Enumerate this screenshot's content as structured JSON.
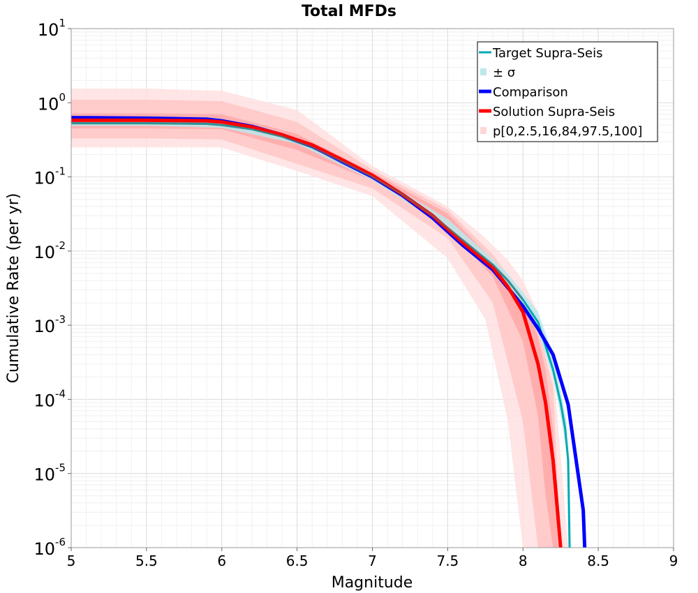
{
  "chart_data": {
    "type": "line",
    "title": "Total MFDs",
    "xlabel": "Magnitude",
    "ylabel": "Cumulative Rate (per yr)",
    "xlim": [
      5,
      9
    ],
    "ylim_log10": [
      -6,
      1
    ],
    "yscale": "log",
    "grid": true,
    "legend_position": "top-right",
    "x_ticks": [
      "5",
      "5.5",
      "6",
      "6.5",
      "7",
      "7.5",
      "8",
      "8.5",
      "9"
    ],
    "y_ticks": [
      {
        "base": "10",
        "exp": "1"
      },
      {
        "base": "10",
        "exp": "0"
      },
      {
        "base": "10",
        "exp": "-1"
      },
      {
        "base": "10",
        "exp": "-2"
      },
      {
        "base": "10",
        "exp": "-3"
      },
      {
        "base": "10",
        "exp": "-4"
      },
      {
        "base": "10",
        "exp": "-5"
      },
      {
        "base": "10",
        "exp": "-6"
      }
    ],
    "legend": [
      {
        "label": "Target Supra-Seis",
        "kind": "line",
        "color": "#00a9b0"
      },
      {
        "label": "± σ",
        "kind": "band",
        "color": "#bce8ec"
      },
      {
        "label": "Comparison",
        "kind": "line",
        "color": "#0000ff"
      },
      {
        "label": "Solution Supra-Seis",
        "kind": "line",
        "color": "#ff0000"
      },
      {
        "label": "p[0,2.5,16,84,97.5,100]",
        "kind": "band",
        "color": "#ffd6d6"
      }
    ],
    "series": [
      {
        "name": "Target Supra-Seis",
        "color": "#00a9b0",
        "x": [
          5.0,
          5.5,
          5.9,
          6.0,
          6.2,
          6.4,
          6.6,
          6.8,
          7.0,
          7.2,
          7.4,
          7.6,
          7.8,
          7.9,
          8.0,
          8.1,
          8.2,
          8.25,
          8.28,
          8.3,
          8.31
        ],
        "y": [
          0.53,
          0.53,
          0.52,
          0.5,
          0.44,
          0.35,
          0.25,
          0.16,
          0.1,
          0.058,
          0.03,
          0.014,
          0.0065,
          0.004,
          0.0022,
          0.0011,
          0.00025,
          9e-05,
          4e-05,
          1.5e-05,
          1e-06
        ]
      },
      {
        "name": "Comparison",
        "color": "#0000ff",
        "x": [
          5.0,
          5.5,
          5.9,
          6.0,
          6.2,
          6.4,
          6.6,
          6.8,
          7.0,
          7.2,
          7.4,
          7.6,
          7.8,
          7.9,
          8.0,
          8.1,
          8.2,
          8.3,
          8.4,
          8.41
        ],
        "y": [
          0.63,
          0.62,
          0.6,
          0.57,
          0.48,
          0.37,
          0.26,
          0.16,
          0.1,
          0.056,
          0.028,
          0.012,
          0.0056,
          0.0032,
          0.0018,
          0.0009,
          0.0004,
          8.5e-05,
          3.2e-06,
          1e-06
        ]
      },
      {
        "name": "Solution Supra-Seis",
        "color": "#ff0000",
        "x": [
          5.0,
          5.5,
          5.9,
          6.0,
          6.2,
          6.4,
          6.6,
          6.8,
          7.0,
          7.2,
          7.4,
          7.6,
          7.8,
          7.9,
          8.0,
          8.1,
          8.15,
          8.2,
          8.23,
          8.25
        ],
        "y": [
          0.58,
          0.58,
          0.57,
          0.55,
          0.47,
          0.37,
          0.27,
          0.17,
          0.105,
          0.058,
          0.03,
          0.013,
          0.006,
          0.0033,
          0.0015,
          0.0003,
          9e-05,
          1.5e-05,
          3e-06,
          1e-06
        ]
      }
    ],
    "sigma_band": {
      "color": "#bce8ec",
      "x": [
        5.0,
        5.5,
        6.0,
        6.5,
        7.0,
        7.5,
        7.8,
        7.9,
        8.0,
        8.1,
        8.2,
        8.25,
        8.29,
        8.31
      ],
      "lower": [
        0.49,
        0.49,
        0.46,
        0.28,
        0.09,
        0.02,
        0.0055,
        0.0034,
        0.0018,
        0.0008,
        0.0002,
        6e-05,
        2e-05,
        1e-06
      ],
      "upper": [
        0.58,
        0.58,
        0.55,
        0.33,
        0.11,
        0.027,
        0.0078,
        0.0049,
        0.0028,
        0.0015,
        0.0004,
        0.00013,
        5e-05,
        2e-06
      ]
    },
    "percentile_bands": [
      {
        "color": "#ffdede",
        "x": [
          5.0,
          5.5,
          6.0,
          6.5,
          7.0,
          7.5,
          7.75,
          7.9,
          8.0,
          8.1,
          8.2,
          8.3
        ],
        "lower": [
          0.25,
          0.25,
          0.25,
          0.12,
          0.055,
          0.008,
          0.0012,
          5e-05,
          1e-06,
          1e-06,
          1e-06,
          1e-06
        ],
        "upper": [
          1.55,
          1.55,
          1.45,
          0.8,
          0.14,
          0.04,
          0.015,
          0.0075,
          0.004,
          0.0015,
          0.0003,
          1e-06
        ]
      },
      {
        "color": "#ffc4c4",
        "x": [
          5.0,
          5.5,
          6.0,
          6.5,
          7.0,
          7.5,
          7.8,
          8.0,
          8.1,
          8.2,
          8.25
        ],
        "lower": [
          0.33,
          0.33,
          0.32,
          0.15,
          0.07,
          0.015,
          0.002,
          5e-05,
          1e-06,
          1e-06,
          1e-06
        ],
        "upper": [
          1.1,
          1.1,
          1.05,
          0.55,
          0.125,
          0.036,
          0.009,
          0.0025,
          0.0009,
          0.00015,
          1e-06
        ]
      },
      {
        "color": "#ffa6a6",
        "x": [
          5.0,
          5.5,
          6.0,
          6.5,
          7.0,
          7.5,
          7.8,
          8.0,
          8.1,
          8.15,
          8.2,
          8.23
        ],
        "lower": [
          0.45,
          0.45,
          0.44,
          0.23,
          0.09,
          0.021,
          0.0045,
          0.0006,
          6e-05,
          5e-06,
          1e-06,
          1e-06
        ],
        "upper": [
          0.72,
          0.72,
          0.7,
          0.38,
          0.115,
          0.032,
          0.0075,
          0.0023,
          0.0007,
          0.00025,
          4e-05,
          1e-06
        ]
      }
    ]
  }
}
